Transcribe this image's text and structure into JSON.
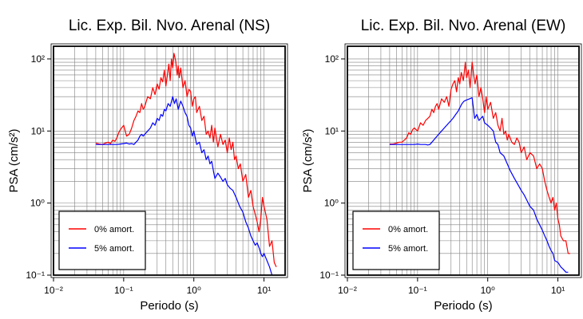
{
  "chart_data": [
    {
      "type": "line",
      "title": "Lic. Exp. Bil. Nvo. Arenal (NS)",
      "xlabel": "Periodo (s)",
      "ylabel": "PSA (cm/s²)",
      "xscale": "log",
      "yscale": "log",
      "xlim": [
        0.01,
        20
      ],
      "ylim": [
        0.1,
        150
      ],
      "grid": true,
      "legend_position": "bottom-left",
      "x_tick_labels": [
        "10⁻²",
        "10⁻¹",
        "10⁰",
        "10¹"
      ],
      "y_tick_labels": [
        "10⁻¹",
        "10⁰",
        "10¹",
        "10²"
      ],
      "series": [
        {
          "name": "0% amort.",
          "color": "#ff0000",
          "x": [
            0.04,
            0.045,
            0.05,
            0.055,
            0.06,
            0.065,
            0.07,
            0.075,
            0.08,
            0.085,
            0.09,
            0.1,
            0.11,
            0.12,
            0.13,
            0.14,
            0.15,
            0.16,
            0.17,
            0.18,
            0.19,
            0.2,
            0.22,
            0.24,
            0.26,
            0.28,
            0.3,
            0.32,
            0.34,
            0.36,
            0.38,
            0.4,
            0.42,
            0.44,
            0.46,
            0.48,
            0.5,
            0.52,
            0.55,
            0.58,
            0.6,
            0.62,
            0.65,
            0.7,
            0.75,
            0.8,
            0.85,
            0.9,
            0.95,
            1.0,
            1.05,
            1.1,
            1.2,
            1.3,
            1.4,
            1.5,
            1.6,
            1.7,
            1.8,
            1.9,
            2.0,
            2.2,
            2.4,
            2.6,
            2.8,
            3.0,
            3.2,
            3.4,
            3.6,
            3.8,
            4.0,
            4.3,
            4.6,
            5.0,
            5.5,
            6.0,
            6.5,
            7.0,
            7.5,
            8.0,
            8.5,
            9.0,
            9.5,
            10.0,
            11.0,
            12.0,
            13.0,
            14.0,
            15.0
          ],
          "values": [
            6.8,
            6.6,
            6.5,
            6.8,
            7.0,
            6.7,
            7.5,
            7.2,
            8.0,
            9.5,
            10.5,
            12.0,
            8.5,
            9.0,
            11.0,
            14.0,
            16.0,
            19.0,
            18.0,
            24.0,
            20.0,
            22.0,
            30.0,
            28.0,
            40.0,
            32.0,
            45.0,
            38.0,
            55.0,
            48.0,
            70.0,
            42.0,
            60.0,
            85.0,
            50.0,
            100.0,
            75.0,
            120.0,
            95.0,
            60.0,
            80.0,
            55.0,
            75.0,
            40.0,
            50.0,
            30.0,
            38.0,
            35.0,
            22.0,
            28.0,
            30.0,
            18.0,
            22.0,
            14.0,
            16.0,
            9.0,
            10.0,
            8.0,
            12.0,
            7.0,
            11.0,
            6.0,
            9.0,
            6.5,
            7.5,
            5.0,
            8.0,
            5.5,
            7.0,
            4.0,
            4.5,
            3.0,
            3.5,
            2.0,
            2.5,
            1.2,
            1.5,
            0.9,
            0.7,
            0.55,
            0.4,
            0.6,
            1.2,
            0.9,
            0.6,
            0.25,
            0.3,
            0.15,
            0.13
          ]
        },
        {
          "name": "5% amort.",
          "color": "#0000ff",
          "x": [
            0.04,
            0.05,
            0.06,
            0.07,
            0.08,
            0.09,
            0.1,
            0.11,
            0.12,
            0.13,
            0.14,
            0.15,
            0.16,
            0.17,
            0.18,
            0.19,
            0.2,
            0.22,
            0.24,
            0.26,
            0.28,
            0.3,
            0.32,
            0.34,
            0.36,
            0.38,
            0.4,
            0.43,
            0.46,
            0.5,
            0.53,
            0.56,
            0.6,
            0.65,
            0.7,
            0.75,
            0.8,
            0.85,
            0.9,
            0.95,
            1.0,
            1.1,
            1.2,
            1.3,
            1.4,
            1.5,
            1.6,
            1.7,
            1.8,
            1.9,
            2.0,
            2.2,
            2.4,
            2.6,
            2.8,
            3.0,
            3.3,
            3.6,
            4.0,
            4.5,
            5.0,
            5.5,
            6.0,
            6.5,
            7.0,
            7.5,
            8.0,
            8.5,
            9.0,
            9.5,
            10.0,
            11.0,
            12.0,
            13.0
          ],
          "values": [
            6.5,
            6.5,
            6.5,
            6.5,
            6.5,
            6.6,
            6.7,
            6.8,
            6.6,
            6.7,
            6.5,
            7.0,
            7.5,
            8.5,
            9.0,
            8.5,
            9.0,
            10.0,
            11.0,
            13.0,
            12.0,
            15.0,
            14.0,
            17.0,
            16.0,
            20.0,
            19.0,
            24.0,
            22.0,
            30.0,
            24.0,
            28.0,
            20.0,
            26.0,
            22.0,
            18.0,
            16.0,
            12.0,
            11.0,
            8.5,
            10.0,
            6.5,
            7.0,
            5.0,
            5.5,
            4.0,
            4.5,
            3.5,
            3.8,
            2.8,
            2.2,
            2.6,
            2.3,
            2.0,
            2.2,
            1.8,
            1.6,
            1.5,
            1.2,
            0.9,
            0.75,
            0.55,
            0.45,
            0.35,
            0.3,
            0.26,
            0.28,
            0.24,
            0.2,
            0.18,
            0.2,
            0.16,
            0.13,
            0.1
          ]
        }
      ]
    },
    {
      "type": "line",
      "title": "Lic. Exp. Bil. Nvo. Arenal (EW)",
      "xlabel": "Periodo (s)",
      "ylabel": "PSA (cm/s²)",
      "xscale": "log",
      "yscale": "log",
      "xlim": [
        0.01,
        20
      ],
      "ylim": [
        0.1,
        150
      ],
      "grid": true,
      "legend_position": "bottom-left",
      "x_tick_labels": [
        "10⁻²",
        "10⁻¹",
        "10⁰",
        "10¹"
      ],
      "y_tick_labels": [
        "10⁻¹",
        "10⁰",
        "10¹",
        "10²"
      ],
      "series": [
        {
          "name": "0% amort.",
          "color": "#ff0000",
          "x": [
            0.04,
            0.045,
            0.05,
            0.055,
            0.06,
            0.065,
            0.07,
            0.075,
            0.08,
            0.085,
            0.09,
            0.1,
            0.11,
            0.12,
            0.13,
            0.14,
            0.15,
            0.16,
            0.17,
            0.18,
            0.19,
            0.2,
            0.22,
            0.24,
            0.26,
            0.28,
            0.3,
            0.32,
            0.34,
            0.36,
            0.38,
            0.4,
            0.42,
            0.45,
            0.48,
            0.5,
            0.53,
            0.56,
            0.6,
            0.63,
            0.66,
            0.7,
            0.75,
            0.8,
            0.85,
            0.9,
            0.95,
            1.0,
            1.1,
            1.2,
            1.3,
            1.4,
            1.5,
            1.6,
            1.7,
            1.8,
            1.9,
            2.0,
            2.2,
            2.4,
            2.6,
            2.8,
            3.0,
            3.3,
            3.6,
            4.0,
            4.5,
            5.0,
            5.5,
            6.0,
            6.5,
            7.0,
            7.5,
            8.0,
            8.5,
            9.0,
            9.5,
            10.0,
            10.5,
            11.0,
            12.0,
            13.0,
            14.0,
            15.0
          ],
          "values": [
            6.6,
            6.6,
            6.8,
            7.0,
            7.0,
            7.5,
            8.0,
            9.5,
            9.0,
            10.5,
            11.0,
            10.0,
            13.0,
            12.0,
            14.0,
            15.0,
            16.0,
            20.0,
            18.0,
            22.0,
            24.0,
            20.0,
            28.0,
            25.0,
            30.0,
            22.0,
            38.0,
            45.0,
            50.0,
            35.0,
            55.0,
            45.0,
            65.0,
            50.0,
            90.0,
            55.0,
            70.0,
            40.0,
            90.0,
            60.0,
            45.0,
            60.0,
            30.0,
            40.0,
            28.0,
            18.0,
            30.0,
            20.0,
            25.0,
            15.0,
            18.0,
            12.0,
            10.0,
            15.0,
            9.0,
            10.0,
            7.5,
            9.0,
            7.0,
            6.5,
            8.0,
            7.0,
            5.0,
            6.0,
            4.0,
            5.0,
            4.5,
            3.0,
            3.5,
            3.0,
            2.0,
            1.5,
            1.2,
            1.0,
            1.2,
            0.8,
            1.0,
            0.6,
            0.5,
            0.35,
            0.3,
            0.3,
            0.2,
            0.2
          ]
        },
        {
          "name": "5% amort.",
          "color": "#0000ff",
          "x": [
            0.04,
            0.05,
            0.06,
            0.07,
            0.08,
            0.09,
            0.1,
            0.11,
            0.12,
            0.13,
            0.14,
            0.15,
            0.16,
            0.17,
            0.18,
            0.19,
            0.2,
            0.22,
            0.24,
            0.26,
            0.28,
            0.3,
            0.32,
            0.35,
            0.38,
            0.4,
            0.43,
            0.46,
            0.5,
            0.55,
            0.6,
            0.65,
            0.7,
            0.75,
            0.8,
            0.85,
            0.9,
            1.0,
            1.1,
            1.2,
            1.3,
            1.4,
            1.5,
            1.7,
            1.9,
            2.1,
            2.4,
            2.7,
            3.0,
            3.3,
            3.6,
            4.0,
            4.5,
            5.0,
            5.5,
            6.0,
            6.5,
            7.0,
            7.5,
            8.0,
            8.5,
            9.0,
            10.0,
            11.0,
            12.0,
            13.0,
            14.0
          ],
          "values": [
            6.5,
            6.5,
            6.5,
            6.5,
            6.5,
            6.5,
            6.6,
            6.5,
            6.5,
            6.5,
            6.4,
            6.5,
            7.0,
            7.5,
            8.0,
            8.5,
            9.0,
            10.0,
            11.0,
            12.0,
            13.0,
            14.0,
            15.0,
            17.0,
            19.0,
            21.0,
            24.0,
            26.0,
            27.0,
            28.0,
            29.0,
            15.0,
            17.0,
            14.0,
            15.0,
            16.0,
            13.0,
            12.0,
            11.0,
            10.0,
            7.0,
            6.5,
            5.0,
            4.5,
            3.5,
            2.8,
            2.2,
            1.8,
            1.5,
            1.3,
            1.1,
            0.9,
            0.8,
            0.6,
            0.5,
            0.42,
            0.35,
            0.3,
            0.25,
            0.22,
            0.2,
            0.16,
            0.15,
            0.13,
            0.12,
            0.11,
            0.11
          ]
        }
      ]
    }
  ]
}
